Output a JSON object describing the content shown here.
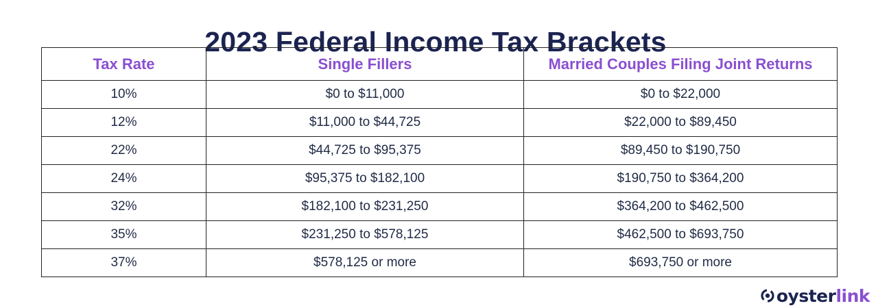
{
  "title": "2023 Federal Income Tax Brackets",
  "table": {
    "headers": [
      "Tax Rate",
      "Single Fillers",
      "Married Couples Filing Joint Returns"
    ],
    "rows": [
      [
        "10%",
        "$0 to $11,000",
        "$0 to $22,000"
      ],
      [
        "12%",
        "$11,000 to $44,725",
        "$22,000 to $89,450"
      ],
      [
        "22%",
        "$44,725 to $95,375",
        "$89,450 to $190,750"
      ],
      [
        "24%",
        "$95,375 to $182,100",
        "$190,750 to $364,200"
      ],
      [
        "32%",
        "$182,100 to $231,250",
        "$364,200 to $462,500"
      ],
      [
        "35%",
        "$231,250 to $578,125",
        "$462,500 to $693,750"
      ],
      [
        "37%",
        "$578,125 or more",
        "$693,750 or more"
      ]
    ]
  },
  "logo": {
    "text_part1": "oyster",
    "text_part2": "link",
    "icon": "oysterlink-logo-icon"
  },
  "colors": {
    "title": "#1b2350",
    "header_text": "#8a4fd0",
    "body_text": "#1f2a44",
    "border": "#222222",
    "brand_dark": "#1b2350",
    "brand_purple": "#8a4fd0"
  }
}
